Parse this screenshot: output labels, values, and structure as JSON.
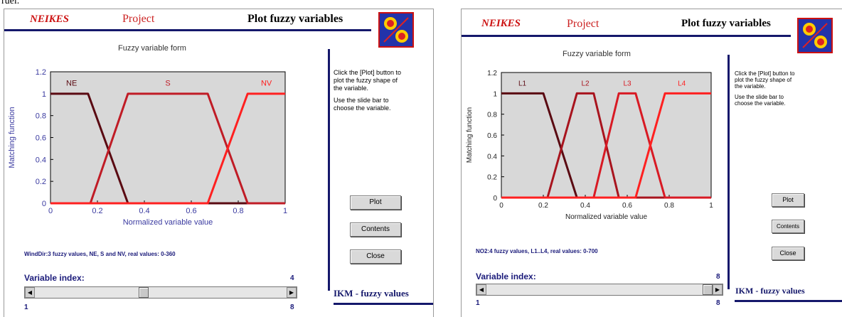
{
  "page": {
    "stray_text": "ruel."
  },
  "panels": [
    {
      "header": {
        "brand": "NEIKES",
        "project": "Project",
        "title": "Plot fuzzy variables"
      },
      "plot_title": "Fuzzy variable form",
      "help": {
        "p1": "Click the [Plot] button to plot the fuzzy shape of the variable.",
        "p2": "Use the slide bar to choose the variable."
      },
      "buttons": {
        "plot": "Plot",
        "contents": "Contents",
        "close": "Close"
      },
      "info": "WindDir:3 fuzzy values, NE, S and NV, real values: 0-360",
      "variable_index_label": "Variable index:",
      "slider": {
        "current": "4",
        "min": "1",
        "max": "8",
        "value": 4,
        "range": [
          1,
          8
        ]
      },
      "footer": "IKM - fuzzy values",
      "colors": {
        "accent": "#15186b",
        "brand": "#cc1111",
        "plot_bg": "#d8d8d8"
      },
      "icons": {
        "logo": "fuzzy-logo-icon",
        "left": "arrow-left-icon",
        "right": "arrow-right-icon"
      },
      "chart_data": {
        "type": "line",
        "title": "Fuzzy variable form",
        "xlabel": "Normalized variable value",
        "ylabel": "Matching function",
        "xlim": [
          0,
          1
        ],
        "ylim": [
          0,
          1.2
        ],
        "xticks": [
          "0",
          "0.2",
          "0.4",
          "0.6",
          "0.8",
          "1"
        ],
        "yticks": [
          "0",
          "0.2",
          "0.4",
          "0.6",
          "0.8",
          "1",
          "1.2"
        ],
        "series": [
          {
            "name": "NE",
            "color": "#5a0a12",
            "x": [
              0,
              0.16,
              0.33,
              1
            ],
            "y": [
              1,
              1,
              0,
              0
            ]
          },
          {
            "name": "S",
            "color": "#c01c26",
            "x": [
              0,
              0.17,
              0.33,
              0.67,
              0.84,
              1
            ],
            "y": [
              0,
              0,
              1,
              1,
              0,
              0
            ]
          },
          {
            "name": "NV",
            "color": "#ff2020",
            "x": [
              0,
              0.67,
              0.84,
              1
            ],
            "y": [
              0,
              0,
              1,
              1
            ]
          }
        ],
        "labels": [
          {
            "text": "NE",
            "x": 0.09,
            "y": 1.1
          },
          {
            "text": "S",
            "x": 0.5,
            "y": 1.1
          },
          {
            "text": "NV",
            "x": 0.92,
            "y": 1.1
          }
        ]
      }
    },
    {
      "header": {
        "brand": "NEIKES",
        "project": "Project",
        "title": "Plot fuzzy variables"
      },
      "plot_title": "Fuzzy variable form",
      "help": {
        "p1": "Click the [Plot] button to plot the fuzzy shape of the variable.",
        "p2": "Use the slide bar to choose the variable."
      },
      "buttons": {
        "plot": "Plot",
        "contents": "Contents",
        "close": "Close"
      },
      "info": "NO2:4 fuzzy values, L1..L4, real values: 0-700",
      "variable_index_label": "Variable index:",
      "slider": {
        "current": "8",
        "min": "1",
        "max": "8",
        "value": 8,
        "range": [
          1,
          8
        ]
      },
      "footer": "IKM - fuzzy values",
      "colors": {
        "accent": "#15186b",
        "brand": "#cc1111",
        "plot_bg": "#d8d8d8"
      },
      "icons": {
        "logo": "fuzzy-logo-icon",
        "left": "arrow-left-icon",
        "right": "arrow-right-icon"
      },
      "chart_data": {
        "type": "line",
        "title": "Fuzzy variable form",
        "xlabel": "Normalized variable value",
        "ylabel": "Matching function",
        "xlim": [
          0,
          1
        ],
        "ylim": [
          0,
          1.2
        ],
        "xticks": [
          "0",
          "0.2",
          "0.4",
          "0.6",
          "0.8",
          "1"
        ],
        "yticks": [
          "0",
          "0.2",
          "0.4",
          "0.6",
          "0.8",
          "1",
          "1.2"
        ],
        "series": [
          {
            "name": "L1",
            "color": "#5a0a12",
            "x": [
              0,
              0.2,
              0.36,
              1
            ],
            "y": [
              1,
              1,
              0,
              0
            ]
          },
          {
            "name": "L2",
            "color": "#a8141e",
            "x": [
              0,
              0.22,
              0.36,
              0.44,
              0.56,
              1
            ],
            "y": [
              0,
              0,
              1,
              1,
              0,
              0
            ]
          },
          {
            "name": "L3",
            "color": "#d81a24",
            "x": [
              0,
              0.44,
              0.56,
              0.64,
              0.78,
              1
            ],
            "y": [
              0,
              0,
              1,
              1,
              0,
              0
            ]
          },
          {
            "name": "L4",
            "color": "#ff2020",
            "x": [
              0,
              0.64,
              0.78,
              1
            ],
            "y": [
              0,
              0,
              1,
              1
            ]
          }
        ],
        "labels": [
          {
            "text": "L1",
            "x": 0.1,
            "y": 1.1
          },
          {
            "text": "L2",
            "x": 0.4,
            "y": 1.1
          },
          {
            "text": "L3",
            "x": 0.6,
            "y": 1.1
          },
          {
            "text": "L4",
            "x": 0.86,
            "y": 1.1
          }
        ]
      }
    }
  ]
}
